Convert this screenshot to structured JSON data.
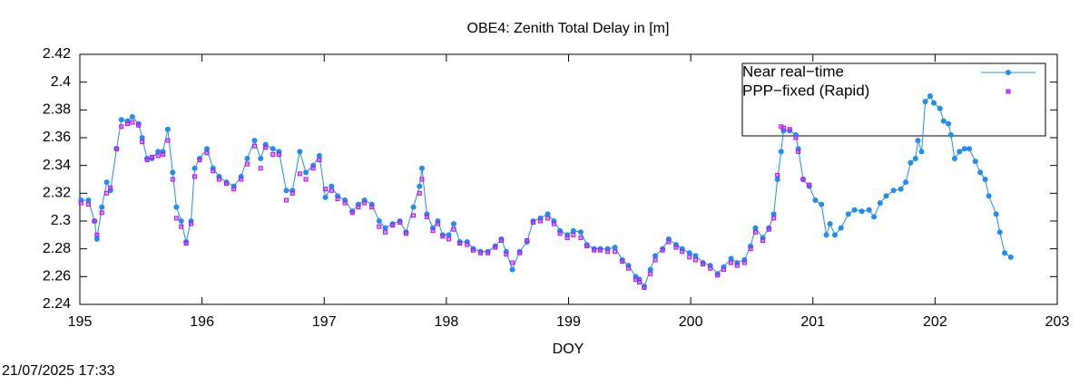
{
  "chart_data": {
    "type": "line",
    "title": "OBE4: Zenith Total Delay in [m]",
    "x_label": "DOY",
    "timestamp": "21/07/2025 17:33",
    "xlim": [
      195,
      203
    ],
    "xticks": [
      195,
      196,
      197,
      198,
      199,
      200,
      201,
      202,
      203
    ],
    "ylim": [
      2.24,
      2.42
    ],
    "yticks": [
      2.24,
      2.26,
      2.28,
      2.3,
      2.32,
      2.34,
      2.36,
      2.38,
      2.4,
      2.42
    ],
    "grid": false,
    "legend": "top-right",
    "series": [
      {
        "name": "Near real−time",
        "color": "#1e8ff0",
        "marker": "circle",
        "x": [
          195.01,
          195.07,
          195.12,
          195.14,
          195.18,
          195.22,
          195.25,
          195.3,
          195.34,
          195.39,
          195.43,
          195.48,
          195.51,
          195.55,
          195.59,
          195.64,
          195.68,
          195.72,
          195.76,
          195.79,
          195.83,
          195.87,
          195.91,
          195.94,
          195.98,
          196.04,
          196.09,
          196.14,
          196.2,
          196.26,
          196.32,
          196.37,
          196.43,
          196.48,
          196.52,
          196.58,
          196.63,
          196.69,
          196.74,
          196.8,
          196.85,
          196.91,
          196.96,
          197.01,
          197.06,
          197.11,
          197.17,
          197.23,
          197.28,
          197.33,
          197.39,
          197.45,
          197.5,
          197.56,
          197.62,
          197.67,
          197.73,
          197.78,
          197.8,
          197.84,
          197.89,
          197.93,
          197.97,
          198.02,
          198.06,
          198.11,
          198.17,
          198.22,
          198.28,
          198.34,
          198.4,
          198.45,
          198.49,
          198.54,
          198.6,
          198.66,
          198.71,
          198.77,
          198.83,
          198.88,
          198.93,
          198.99,
          199.04,
          199.1,
          199.15,
          199.21,
          199.26,
          199.32,
          199.38,
          199.44,
          199.49,
          199.55,
          199.58,
          199.62,
          199.67,
          199.71,
          199.77,
          199.82,
          199.88,
          199.93,
          199.99,
          200.04,
          200.1,
          200.16,
          200.22,
          200.27,
          200.33,
          200.38,
          200.44,
          200.49,
          200.53,
          200.59,
          200.64,
          200.68,
          200.71,
          200.74,
          200.76,
          200.81,
          200.86,
          200.88,
          200.92,
          200.97,
          201.02,
          201.07,
          201.11,
          201.14,
          201.18,
          201.23,
          201.29,
          201.34,
          201.4,
          201.46,
          201.5,
          201.55,
          201.6,
          201.66,
          201.72,
          201.76,
          201.8,
          201.84,
          201.86,
          201.89,
          201.92,
          201.96,
          201.99,
          202.04,
          202.07,
          202.11,
          202.13,
          202.16,
          202.2,
          202.24,
          202.28,
          202.33,
          202.37,
          202.41,
          202.44,
          202.5,
          202.53,
          202.57,
          202.62
        ],
        "values": [
          2.315,
          2.315,
          2.3,
          2.287,
          2.31,
          2.328,
          2.322,
          2.352,
          2.373,
          2.372,
          2.375,
          2.37,
          2.36,
          2.345,
          2.345,
          2.35,
          2.35,
          2.366,
          2.335,
          2.31,
          2.3,
          2.285,
          2.3,
          2.338,
          2.345,
          2.352,
          2.338,
          2.332,
          2.328,
          2.325,
          2.332,
          2.345,
          2.358,
          2.345,
          2.355,
          2.352,
          2.35,
          2.322,
          2.322,
          2.35,
          2.335,
          2.34,
          2.347,
          2.317,
          2.325,
          2.318,
          2.315,
          2.307,
          2.312,
          2.315,
          2.312,
          2.3,
          2.295,
          2.298,
          2.3,
          2.292,
          2.31,
          2.325,
          2.338,
          2.305,
          2.295,
          2.3,
          2.29,
          2.29,
          2.298,
          2.285,
          2.285,
          2.28,
          2.278,
          2.278,
          2.282,
          2.287,
          2.278,
          2.265,
          2.278,
          2.285,
          2.3,
          2.302,
          2.305,
          2.3,
          2.293,
          2.29,
          2.293,
          2.292,
          2.283,
          2.28,
          2.28,
          2.28,
          2.281,
          2.272,
          2.268,
          2.26,
          2.258,
          2.253,
          2.265,
          2.275,
          2.28,
          2.287,
          2.283,
          2.28,
          2.277,
          2.275,
          2.27,
          2.268,
          2.262,
          2.267,
          2.273,
          2.27,
          2.272,
          2.282,
          2.295,
          2.288,
          2.295,
          2.305,
          2.33,
          2.35,
          2.365,
          2.365,
          2.362,
          2.352,
          2.33,
          2.325,
          2.315,
          2.312,
          2.29,
          2.298,
          2.29,
          2.295,
          2.305,
          2.308,
          2.307,
          2.308,
          2.303,
          2.313,
          2.318,
          2.322,
          2.323,
          2.328,
          2.342,
          2.345,
          2.358,
          2.35,
          2.386,
          2.39,
          2.385,
          2.381,
          2.372,
          2.37,
          2.362,
          2.345,
          2.35,
          2.352,
          2.352,
          2.343,
          2.335,
          2.33,
          2.318,
          2.305,
          2.292,
          2.277,
          2.274
        ]
      },
      {
        "name": "PPP−fixed (Rapid)",
        "color": "#cc00ff",
        "marker": "square",
        "x": [
          195.01,
          195.07,
          195.12,
          195.14,
          195.18,
          195.22,
          195.25,
          195.3,
          195.34,
          195.39,
          195.43,
          195.48,
          195.51,
          195.55,
          195.59,
          195.64,
          195.68,
          195.72,
          195.76,
          195.79,
          195.83,
          195.87,
          195.91,
          195.94,
          195.98,
          196.04,
          196.09,
          196.14,
          196.2,
          196.26,
          196.32,
          196.37,
          196.43,
          196.48,
          196.52,
          196.58,
          196.63,
          196.69,
          196.74,
          196.8,
          196.85,
          196.91,
          196.96,
          197.01,
          197.06,
          197.11,
          197.17,
          197.23,
          197.28,
          197.33,
          197.39,
          197.45,
          197.5,
          197.56,
          197.62,
          197.67,
          197.73,
          197.78,
          197.8,
          197.84,
          197.89,
          197.93,
          197.97,
          198.02,
          198.06,
          198.11,
          198.17,
          198.22,
          198.28,
          198.34,
          198.4,
          198.45,
          198.49,
          198.54,
          198.6,
          198.66,
          198.71,
          198.77,
          198.83,
          198.88,
          198.93,
          198.99,
          199.04,
          199.1,
          199.15,
          199.21,
          199.26,
          199.32,
          199.38,
          199.44,
          199.49,
          199.55,
          199.58,
          199.62,
          199.67,
          199.71,
          199.77,
          199.82,
          199.88,
          199.93,
          199.99,
          200.04,
          200.1,
          200.16,
          200.22,
          200.27,
          200.33,
          200.38,
          200.44,
          200.49,
          200.53,
          200.59,
          200.64,
          200.68,
          200.71,
          200.74,
          200.76,
          200.81,
          200.86,
          200.88,
          200.92,
          200.97
        ],
        "values": [
          2.313,
          2.312,
          2.3,
          2.29,
          2.306,
          2.32,
          2.324,
          2.352,
          2.368,
          2.37,
          2.371,
          2.369,
          2.357,
          2.344,
          2.346,
          2.347,
          2.348,
          2.358,
          2.33,
          2.302,
          2.296,
          2.284,
          2.298,
          2.332,
          2.344,
          2.349,
          2.336,
          2.33,
          2.327,
          2.323,
          2.33,
          2.341,
          2.354,
          2.338,
          2.353,
          2.348,
          2.348,
          2.315,
          2.32,
          2.334,
          2.33,
          2.338,
          2.344,
          2.323,
          2.322,
          2.316,
          2.313,
          2.306,
          2.31,
          2.313,
          2.31,
          2.296,
          2.292,
          2.297,
          2.299,
          2.291,
          2.304,
          2.32,
          2.33,
          2.303,
          2.293,
          2.298,
          2.289,
          2.287,
          2.294,
          2.284,
          2.283,
          2.279,
          2.277,
          2.277,
          2.281,
          2.286,
          2.276,
          2.27,
          2.277,
          2.286,
          2.299,
          2.3,
          2.302,
          2.298,
          2.291,
          2.288,
          2.29,
          2.288,
          2.282,
          2.279,
          2.279,
          2.278,
          2.278,
          2.271,
          2.266,
          2.258,
          2.256,
          2.252,
          2.262,
          2.272,
          2.279,
          2.285,
          2.281,
          2.278,
          2.274,
          2.272,
          2.269,
          2.266,
          2.261,
          2.265,
          2.27,
          2.268,
          2.27,
          2.28,
          2.292,
          2.286,
          2.294,
          2.302,
          2.333,
          2.368,
          2.367,
          2.366,
          2.36,
          2.35,
          2.33,
          2.326
        ]
      }
    ]
  }
}
